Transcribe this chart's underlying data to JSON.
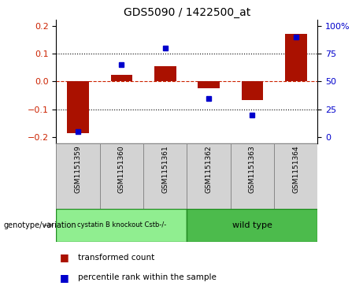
{
  "title": "GDS5090 / 1422500_at",
  "samples": [
    "GSM1151359",
    "GSM1151360",
    "GSM1151361",
    "GSM1151362",
    "GSM1151363",
    "GSM1151364"
  ],
  "red_bars": [
    -0.185,
    0.025,
    0.055,
    -0.025,
    -0.065,
    0.17
  ],
  "blue_dots_pct": [
    5,
    65,
    80,
    35,
    20,
    90
  ],
  "ylim": [
    -0.22,
    0.22
  ],
  "left_yticks": [
    -0.2,
    -0.1,
    0.0,
    0.1,
    0.2
  ],
  "right_yticks_pct": [
    0,
    25,
    50,
    75,
    100
  ],
  "left_color": "#cc2200",
  "right_color": "#0000cc",
  "bar_color": "#aa1100",
  "dot_color": "#0000cc",
  "zero_line_color": "#cc2200",
  "dotted_line_color": "#000000",
  "group1_label": "cystatin B knockout Cstb-/-",
  "group2_label": "wild type",
  "group1_count": 3,
  "group2_count": 3,
  "genotype_label": "genotype/variation",
  "legend_red": "transformed count",
  "legend_blue": "percentile rank within the sample",
  "group1_color": "#90ee90",
  "group2_color": "#4cbb4c",
  "sample_box_color": "#d3d3d3",
  "fig_width": 4.61,
  "fig_height": 3.63,
  "dpi": 100
}
